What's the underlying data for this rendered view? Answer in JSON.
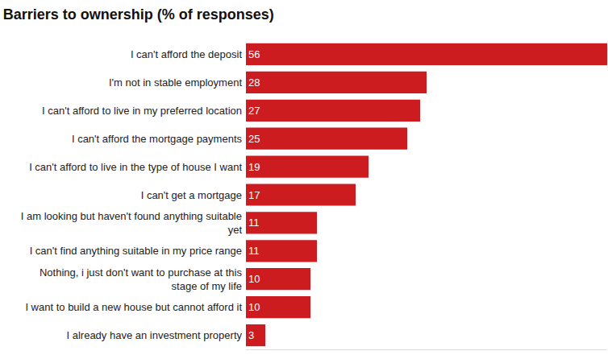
{
  "chart_data": {
    "type": "bar",
    "title": "Barriers to ownership (% of responses)",
    "orientation": "horizontal",
    "categories": [
      "I can't afford the deposit",
      "I'm not in stable employment",
      "I can't afford to live in my preferred location",
      "I can't afford the mortgage payments",
      "I can't afford to live in the type of house I want",
      "I can't get a mortgage",
      "I am looking but haven't found anything suitable yet",
      "I can't find anything suitable in my price range",
      "Nothing, i just don't want to purchase at this stage of my life",
      "I want to build a new house but cannot afford it",
      "I already have an investment property"
    ],
    "values": [
      56,
      28,
      27,
      25,
      19,
      17,
      11,
      11,
      10,
      10,
      3
    ],
    "color": "#cc1c1f",
    "xlim": [
      0,
      56
    ],
    "grid": false,
    "data_labels": true,
    "tick_labels": "y"
  }
}
